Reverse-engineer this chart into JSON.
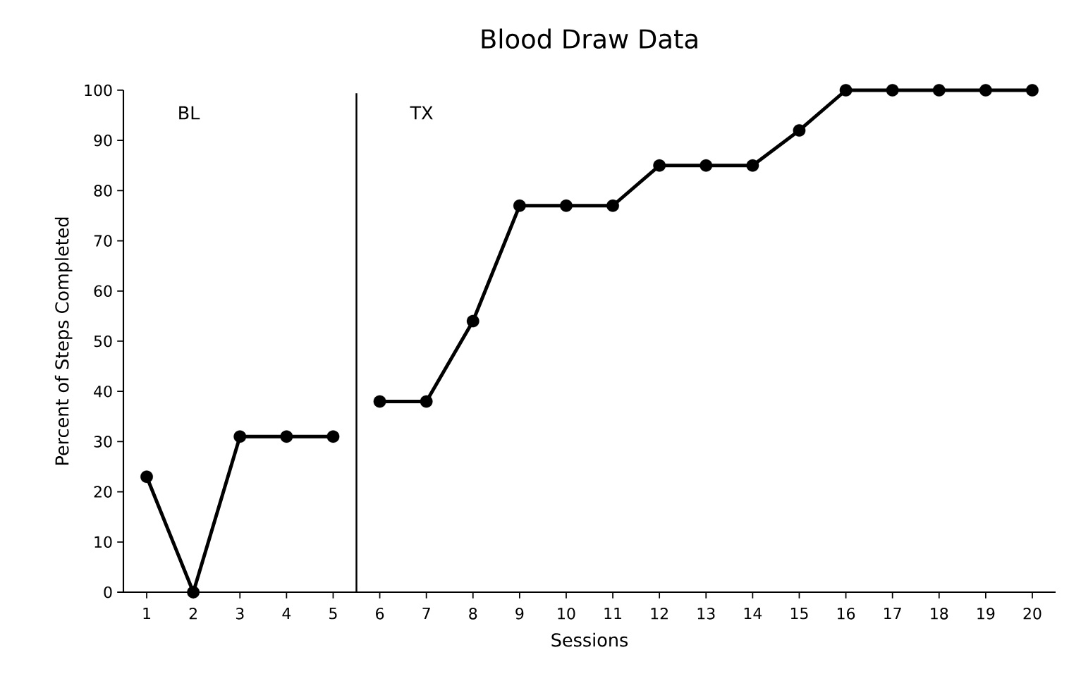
{
  "chart_data": {
    "type": "line",
    "title": "Blood Draw Data",
    "xlabel": "Sessions",
    "ylabel": "Percent of Steps Completed",
    "series": [
      {
        "color": "#000000",
        "x": [
          1,
          2,
          3,
          4,
          5
        ],
        "values": [
          23,
          0,
          31,
          31,
          31
        ]
      },
      {
        "color": "#000000",
        "x": [
          6,
          7,
          8,
          9,
          10,
          11,
          12,
          13,
          14,
          15,
          16,
          17,
          18,
          19,
          20
        ],
        "values": [
          38,
          38,
          54,
          77,
          77,
          77,
          85,
          85,
          85,
          92,
          100,
          100,
          100,
          100,
          100
        ]
      }
    ],
    "xlim": [
      0.5,
      20.5
    ],
    "xticks": [
      1,
      2,
      3,
      4,
      5,
      6,
      7,
      8,
      9,
      10,
      11,
      12,
      13,
      14,
      15,
      16,
      17,
      18,
      19,
      20
    ],
    "ylim": [
      0,
      100
    ],
    "yticks": [
      0,
      10,
      20,
      30,
      40,
      50,
      60,
      70,
      80,
      90,
      100
    ],
    "ref_lines": [
      {
        "axis": "x",
        "value": 5.5,
        "color": "#000000"
      }
    ],
    "annotations": [
      "BL",
      "TX"
    ],
    "marker": "circle",
    "line_style": "solid"
  }
}
